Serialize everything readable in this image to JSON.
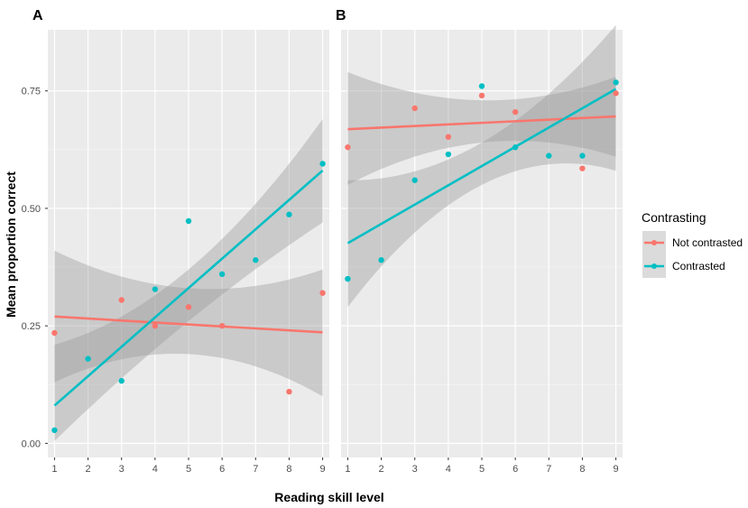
{
  "chart_data": {
    "type": "scatter",
    "xlabel": "Reading skill level",
    "ylabel": "Mean proportion correct",
    "x_ticks": [
      1,
      2,
      3,
      4,
      5,
      6,
      7,
      8,
      9
    ],
    "y_ticks": [
      "0.00",
      "0.25",
      "0.50",
      "0.75"
    ],
    "xlim": [
      0.8,
      9.2
    ],
    "ylim": [
      -0.03,
      0.88
    ],
    "grid": true,
    "legend": {
      "title": "Contrasting",
      "position": "right",
      "entries": [
        {
          "name": "Not contrasted",
          "color": "#F8766D"
        },
        {
          "name": "Contrasted",
          "color": "#00BFC4"
        }
      ]
    },
    "panels": [
      {
        "label": "A",
        "series": [
          {
            "name": "Not contrasted",
            "color": "#F8766D",
            "points": [
              [
                1,
                0.235
              ],
              [
                3,
                0.305
              ],
              [
                4,
                0.25
              ],
              [
                5,
                0.29
              ],
              [
                6,
                0.25
              ],
              [
                8,
                0.11
              ],
              [
                9,
                0.32
              ]
            ],
            "fit": {
              "intercept": 0.274,
              "slope": -0.0042
            },
            "ci": {
              "lower_at_min": 0.13,
              "lower_at_center": 0.19,
              "lower_at_max": 0.1,
              "upper_at_min": 0.41,
              "upper_at_center": 0.33,
              "upper_at_max": 0.37
            }
          },
          {
            "name": "Contrasted",
            "color": "#00BFC4",
            "points": [
              [
                1,
                0.028
              ],
              [
                2,
                0.18
              ],
              [
                3,
                0.133
              ],
              [
                4,
                0.328
              ],
              [
                5,
                0.473
              ],
              [
                6,
                0.36
              ],
              [
                7,
                0.39
              ],
              [
                8,
                0.487
              ],
              [
                9,
                0.595
              ]
            ],
            "fit": {
              "intercept": 0.018,
              "slope": 0.0625
            },
            "ci": {
              "lower_at_min": 0.005,
              "lower_at_center": 0.26,
              "lower_at_max": 0.47,
              "upper_at_min": 0.21,
              "upper_at_center": 0.37,
              "upper_at_max": 0.69
            }
          }
        ]
      },
      {
        "label": "B",
        "series": [
          {
            "name": "Not contrasted",
            "color": "#F8766D",
            "points": [
              [
                1,
                0.63
              ],
              [
                3,
                0.713
              ],
              [
                4,
                0.652
              ],
              [
                5,
                0.74
              ],
              [
                6,
                0.705
              ],
              [
                8,
                0.585
              ],
              [
                9,
                0.745
              ]
            ],
            "fit": {
              "intercept": 0.665,
              "slope": 0.0034
            },
            "ci": {
              "lower_at_min": 0.55,
              "lower_at_center": 0.64,
              "lower_at_max": 0.61,
              "upper_at_min": 0.79,
              "upper_at_center": 0.73,
              "upper_at_max": 0.78
            }
          },
          {
            "name": "Contrasted",
            "color": "#00BFC4",
            "points": [
              [
                1,
                0.35
              ],
              [
                2,
                0.39
              ],
              [
                3,
                0.56
              ],
              [
                4,
                0.615
              ],
              [
                5,
                0.76
              ],
              [
                6,
                0.63
              ],
              [
                7,
                0.612
              ],
              [
                8,
                0.612
              ],
              [
                9,
                0.768
              ]
            ],
            "fit": {
              "intercept": 0.385,
              "slope": 0.041
            },
            "ci": {
              "lower_at_min": 0.29,
              "lower_at_center": 0.55,
              "lower_at_max": 0.58,
              "upper_at_min": 0.56,
              "upper_at_center": 0.64,
              "upper_at_max": 0.89
            }
          }
        ]
      }
    ]
  }
}
